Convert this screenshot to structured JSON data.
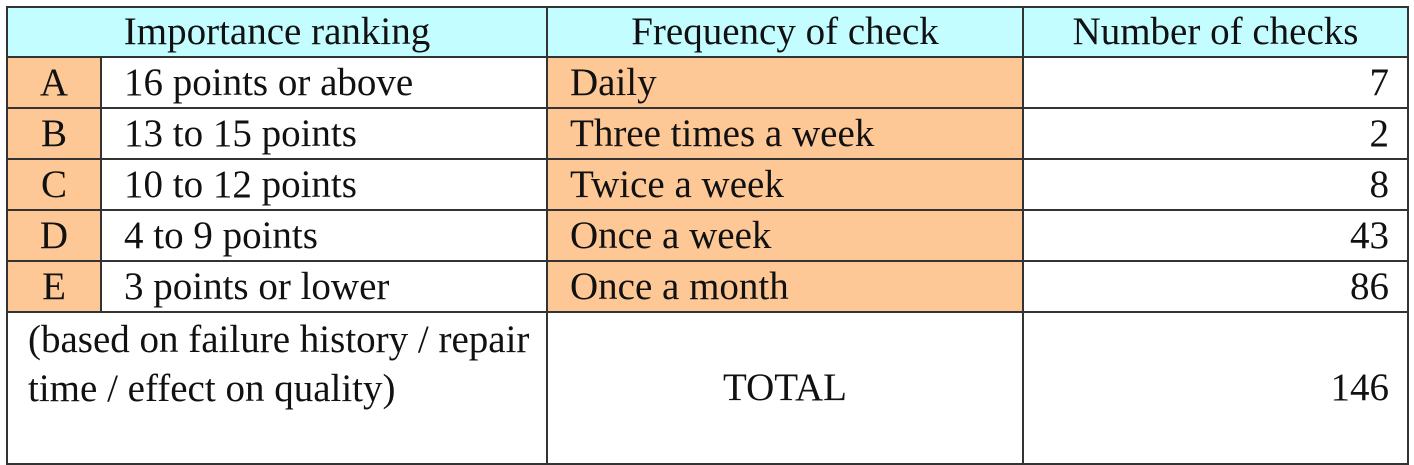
{
  "table": {
    "headers": {
      "importance": "Importance ranking",
      "frequency": "Frequency of check",
      "number": "Number of checks"
    },
    "rows": [
      {
        "rank": "A",
        "range": "16 points or above",
        "frequency": "Daily",
        "checks": "7"
      },
      {
        "rank": "B",
        "range": "13 to 15 points",
        "frequency": "Three times a week",
        "checks": "2"
      },
      {
        "rank": "C",
        "range": "10 to 12 points",
        "frequency": "Twice a week",
        "checks": "8"
      },
      {
        "rank": "D",
        "range": "4 to 9 points",
        "frequency": "Once a week",
        "checks": "43"
      },
      {
        "rank": "E",
        "range": "3 points or lower",
        "frequency": "Once a month",
        "checks": "86"
      }
    ],
    "footer": {
      "note": "(based on failure history / repair time / effect on quality)",
      "total_label": "TOTAL",
      "total_value": "146"
    }
  },
  "colors": {
    "header_bg": "#c3fdff",
    "highlight_bg": "#fdc896",
    "border": "#333333"
  }
}
